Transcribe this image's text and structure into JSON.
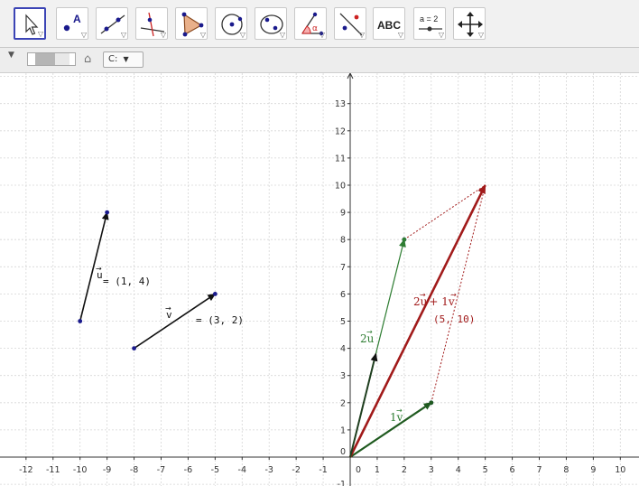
{
  "toolbar": {
    "tools": [
      {
        "name": "move-tool-button",
        "icon": "move-arrow-icon",
        "selected": true
      },
      {
        "name": "point-tool-button",
        "icon": "point-icon",
        "label": "A"
      },
      {
        "name": "line-tool-button",
        "icon": "line-through-points-icon"
      },
      {
        "name": "perpendicular-tool-button",
        "icon": "perpendicular-line-icon"
      },
      {
        "name": "polygon-tool-button",
        "icon": "polygon-icon"
      },
      {
        "name": "circle-tool-button",
        "icon": "circle-center-point-icon"
      },
      {
        "name": "conic-tool-button",
        "icon": "ellipse-icon"
      },
      {
        "name": "angle-tool-button",
        "icon": "angle-icon",
        "label": "α"
      },
      {
        "name": "reflect-tool-button",
        "icon": "reflect-about-line-icon"
      },
      {
        "name": "text-tool-button",
        "icon": "text-icon",
        "label": "ABC"
      },
      {
        "name": "slider-tool-button",
        "icon": "slider-icon",
        "label": "a = 2"
      },
      {
        "name": "move-graphics-view-button",
        "icon": "move-graphics-view-icon"
      }
    ]
  },
  "subbar": {
    "style_label": "C:",
    "home_icon": "home-icon"
  },
  "colors": {
    "vector_black": "#111111",
    "point_blue": "#1a1a8c",
    "green": "#2e7d32",
    "dark_green": "#1f5a1f",
    "red": "#a11a1a",
    "grid": "#d6d6d6",
    "axis": "#333333",
    "selected_border": "#3b44b5"
  },
  "graph": {
    "x_ticks": [
      "-12",
      "-11",
      "-10",
      "-9",
      "-8",
      "-7",
      "-6",
      "-5",
      "-4",
      "-3",
      "-2",
      "-1",
      "0",
      "1",
      "2",
      "3",
      "4",
      "5",
      "6",
      "7",
      "8",
      "9",
      "10"
    ],
    "y_ticks": [
      "1",
      "2",
      "3",
      "4",
      "5",
      "6",
      "7",
      "8",
      "9",
      "10",
      "11",
      "12",
      "13"
    ],
    "y_neg_label": "-1",
    "vectors": [
      {
        "name": "vector-u",
        "from": [
          -10,
          5
        ],
        "to": [
          -9,
          9
        ],
        "color": "vector_black"
      },
      {
        "name": "vector-v",
        "from": [
          -8,
          4
        ],
        "to": [
          -5,
          6
        ],
        "color": "vector_black"
      },
      {
        "name": "vector-2u",
        "from": [
          0,
          0
        ],
        "to": [
          2,
          8
        ],
        "color": "green"
      },
      {
        "name": "vector-1v",
        "from": [
          0,
          0
        ],
        "to": [
          3,
          2
        ],
        "color": "dark_green"
      },
      {
        "name": "vector-sum",
        "from": [
          0,
          0
        ],
        "to": [
          5,
          10
        ],
        "color": "red"
      }
    ],
    "points": [
      [
        -10,
        5
      ],
      [
        -9,
        9
      ],
      [
        -8,
        4
      ],
      [
        -5,
        6
      ],
      [
        2,
        8
      ],
      [
        3,
        2
      ]
    ],
    "u_label": {
      "symbol": "u",
      "value": "= (1, 4)"
    },
    "v_label": {
      "symbol": "v",
      "value": "= (3, 2)"
    },
    "label_2u": "2",
    "label_1v": "1",
    "sum_label_2": "2",
    "sum_label_plus": "+ 1",
    "sum_value": "(5, 10)"
  }
}
